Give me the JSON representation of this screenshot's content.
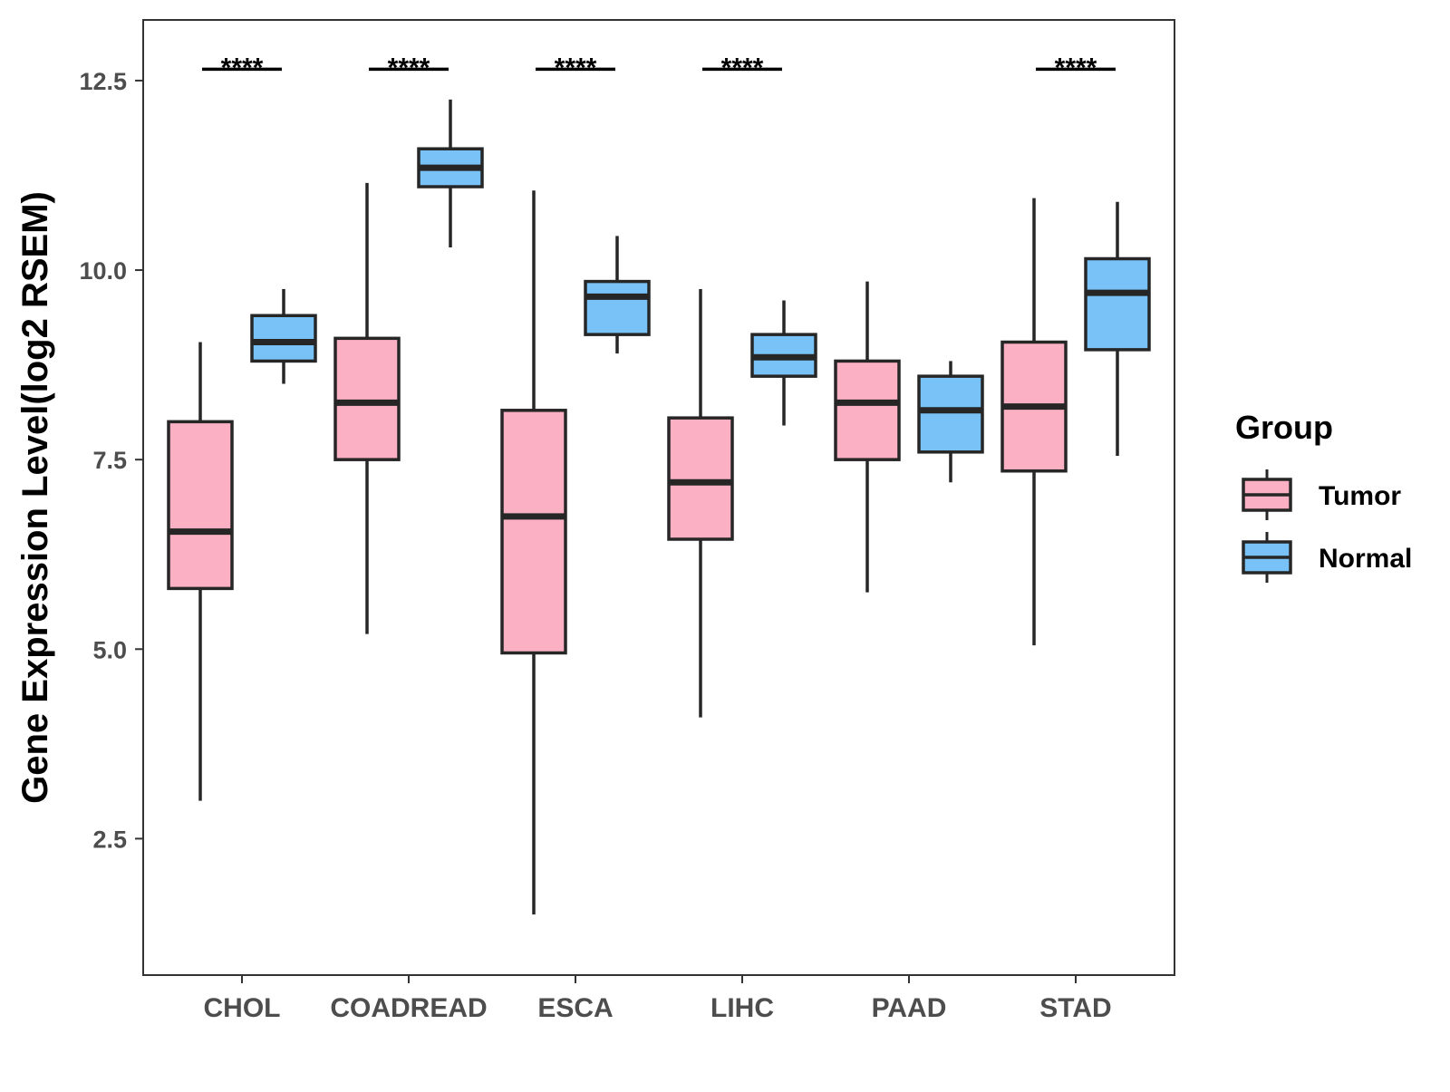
{
  "chart_data": {
    "type": "boxplot",
    "title": "",
    "xlabel": "",
    "ylabel": "Gene Expression Level(log2 RSEM)",
    "ylim": [
      0.7,
      13.3
    ],
    "yticks": [
      2.5,
      5.0,
      7.5,
      10.0,
      12.5
    ],
    "ytick_labels": [
      "2.5",
      "5.0",
      "7.5",
      "10.0",
      "12.5"
    ],
    "categories": [
      "CHOL",
      "COADREAD",
      "ESCA",
      "LIHC",
      "PAAD",
      "STAD"
    ],
    "grid": false,
    "legend": {
      "title": "Group",
      "position": "right",
      "entries": [
        "Tumor",
        "Normal"
      ]
    },
    "series": [
      {
        "name": "Tumor",
        "color": "#FBB1C3",
        "boxes": [
          {
            "whisker_low": 3.0,
            "q1": 5.8,
            "median": 6.55,
            "q3": 8.0,
            "whisker_high": 9.05
          },
          {
            "whisker_low": 5.2,
            "q1": 7.5,
            "median": 8.25,
            "q3": 9.1,
            "whisker_high": 11.15
          },
          {
            "whisker_low": 1.5,
            "q1": 4.95,
            "median": 6.75,
            "q3": 8.15,
            "whisker_high": 11.05
          },
          {
            "whisker_low": 4.1,
            "q1": 6.45,
            "median": 7.2,
            "q3": 8.05,
            "whisker_high": 9.75
          },
          {
            "whisker_low": 5.75,
            "q1": 7.5,
            "median": 8.25,
            "q3": 8.8,
            "whisker_high": 9.85
          },
          {
            "whisker_low": 5.05,
            "q1": 7.35,
            "median": 8.2,
            "q3": 9.05,
            "whisker_high": 10.95
          }
        ]
      },
      {
        "name": "Normal",
        "color": "#78C2F7",
        "boxes": [
          {
            "whisker_low": 8.5,
            "q1": 8.8,
            "median": 9.05,
            "q3": 9.4,
            "whisker_high": 9.75
          },
          {
            "whisker_low": 10.3,
            "q1": 11.1,
            "median": 11.35,
            "q3": 11.6,
            "whisker_high": 12.25
          },
          {
            "whisker_low": 8.9,
            "q1": 9.15,
            "median": 9.65,
            "q3": 9.85,
            "whisker_high": 10.45
          },
          {
            "whisker_low": 7.95,
            "q1": 8.6,
            "median": 8.85,
            "q3": 9.15,
            "whisker_high": 9.6
          },
          {
            "whisker_low": 7.2,
            "q1": 7.6,
            "median": 8.15,
            "q3": 8.6,
            "whisker_high": 8.8
          },
          {
            "whisker_low": 7.55,
            "q1": 8.95,
            "median": 9.7,
            "q3": 10.15,
            "whisker_high": 10.9
          }
        ]
      }
    ],
    "significance": [
      {
        "category": "CHOL",
        "label": "****",
        "y": 12.65
      },
      {
        "category": "COADREAD",
        "label": "****",
        "y": 12.65
      },
      {
        "category": "ESCA",
        "label": "****",
        "y": 12.65
      },
      {
        "category": "LIHC",
        "label": "****",
        "y": 12.65
      },
      {
        "category": "STAD",
        "label": "****",
        "y": 12.65
      }
    ]
  }
}
